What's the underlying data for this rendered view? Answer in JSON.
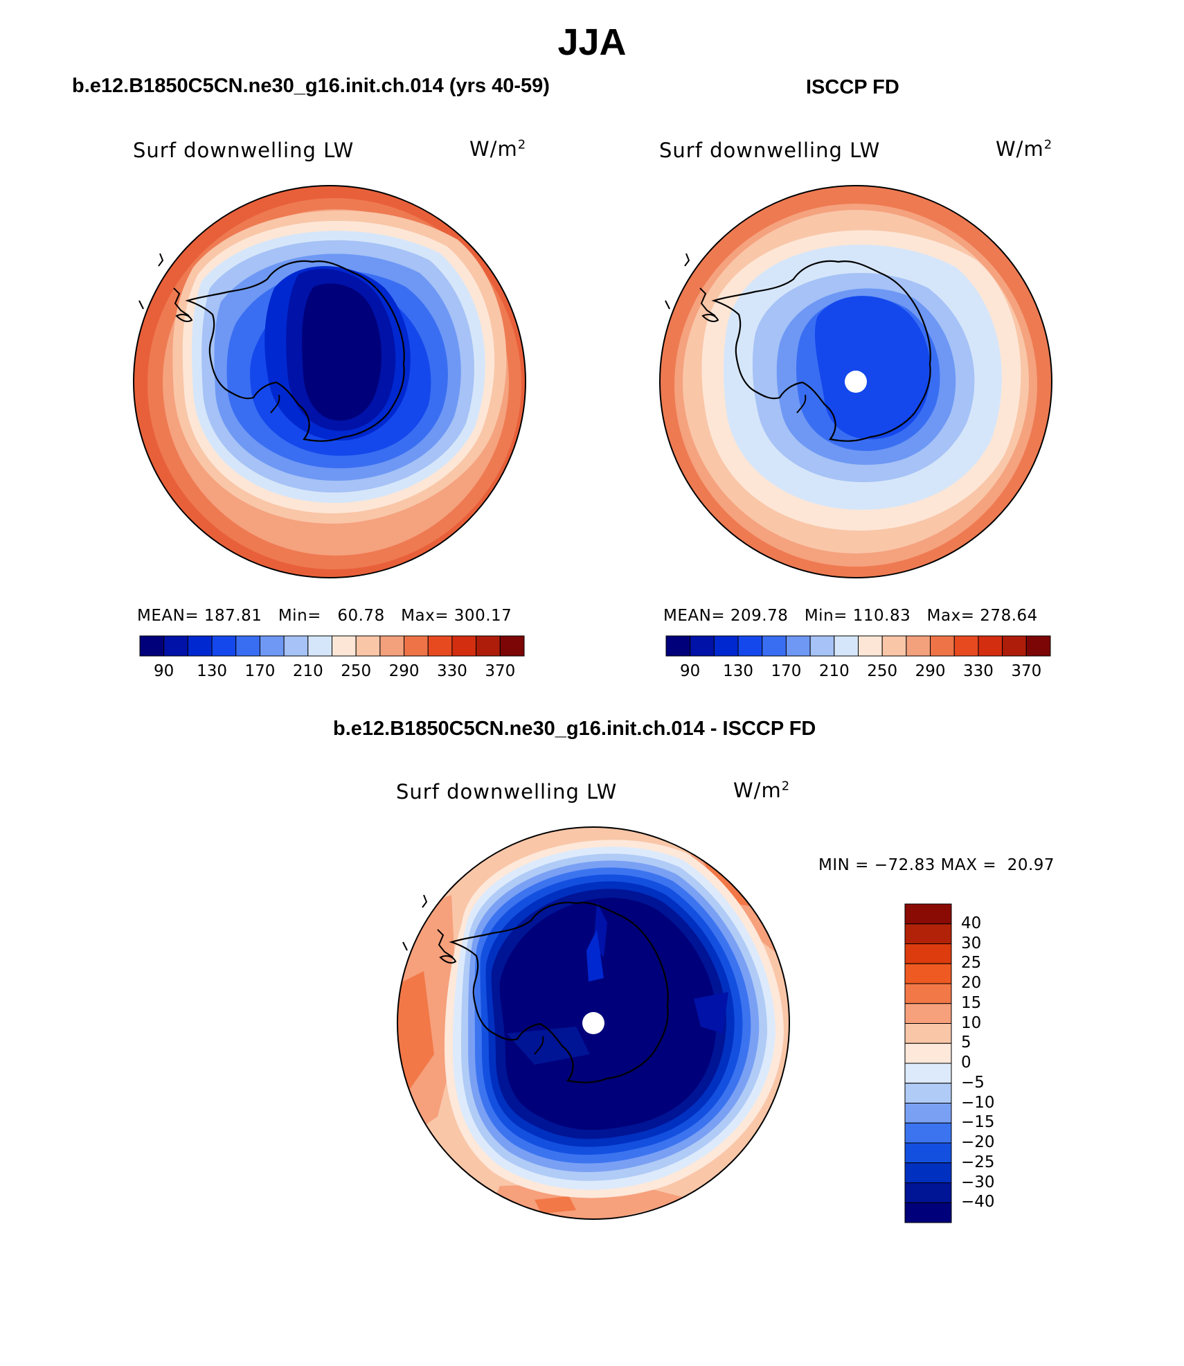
{
  "figure_title": "JJA",
  "panels": [
    {
      "title": "b.e12.B1850C5CN.ne30_g16.init.ch.014 (yrs 40-59)",
      "variable": "Surf downwelling LW",
      "units_base": "W/m",
      "units_exp": "2",
      "mean_label": "MEAN=",
      "mean": "187.81",
      "min_label": "Min=",
      "min": "60.78",
      "max_label": "Max=",
      "max": "300.17"
    },
    {
      "title": "ISCCP FD",
      "variable": "Surf downwelling LW",
      "units_base": "W/m",
      "units_exp": "2",
      "mean_label": "MEAN=",
      "mean": "209.78",
      "min_label": "Min=",
      "min": "110.83",
      "max_label": "Max=",
      "max": "278.64"
    },
    {
      "title": "b.e12.B1850C5CN.ne30_g16.init.ch.014 - ISCCP FD",
      "variable": "Surf downwelling LW",
      "units_base": "W/m",
      "units_exp": "2",
      "min_label": "MIN =",
      "min": "−72.83",
      "max_label": "MAX =",
      "max": "20.97"
    }
  ],
  "abs_colorbar": {
    "colors": [
      "#00007a",
      "#0012a8",
      "#0028d0",
      "#1448ec",
      "#3a6ef2",
      "#6e98f4",
      "#a6c2f6",
      "#d6e6fa",
      "#fde6d6",
      "#f9c6a8",
      "#f3a07c",
      "#ee7448",
      "#e84a20",
      "#d42e10",
      "#ad1d0a",
      "#7c0606"
    ],
    "labels": [
      "90",
      "130",
      "170",
      "210",
      "250",
      "290",
      "330",
      "370"
    ]
  },
  "diff_colorbar": {
    "colors": [
      "#00007a",
      "#001496",
      "#0030c0",
      "#1450e0",
      "#3c74f0",
      "#7aa0f4",
      "#b0cbf6",
      "#dceafc",
      "#fde8da",
      "#f9c6a8",
      "#f6a07c",
      "#f27848",
      "#ee5a22",
      "#dc3c0e",
      "#b22208",
      "#8a0a04"
    ],
    "labels": [
      "40",
      "30",
      "25",
      "20",
      "15",
      "10",
      "5",
      "0",
      "−5",
      "−10",
      "−15",
      "−20",
      "−25",
      "−30",
      "−40"
    ]
  },
  "pole_marker_color": "#ffffff",
  "coastline_color": "#000000"
}
